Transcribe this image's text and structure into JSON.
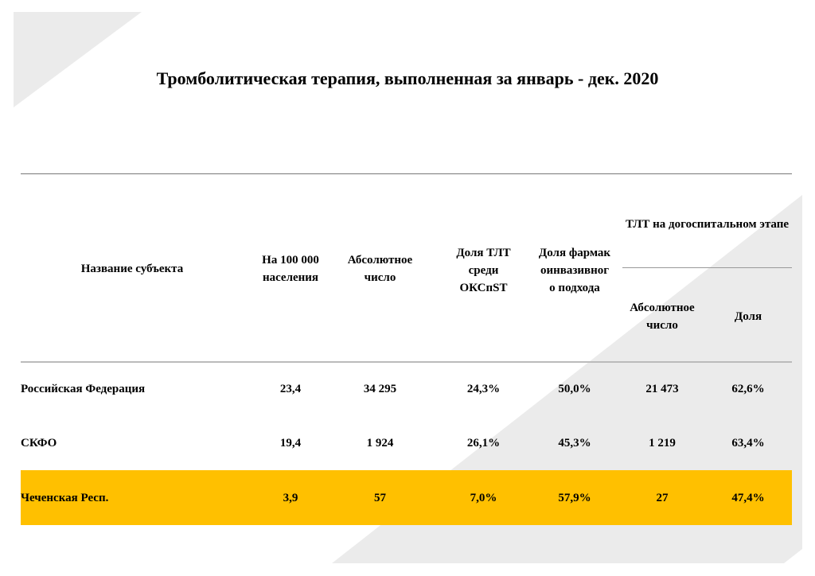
{
  "title": "Тромболитическая терапия, выполненная за январь - дек. 2020",
  "colors": {
    "highlight": "#FFC000",
    "decor": "#EBEBEB",
    "rule": "#777777"
  },
  "table": {
    "headers": {
      "name": "Название субъекта",
      "per100k": "На 100 000 населения",
      "absolute": "Абсолютное число",
      "share_oks": "Доля ТЛТ среди ОКСпST",
      "share_pharma": "Доля фармакоинвазивного подхода",
      "prehospital": "ТЛТ на догоспитальном этапе",
      "prehospital_abs": "Абсолютное число",
      "prehospital_share": "Доля"
    },
    "rows": [
      {
        "name": "Российская Федерация",
        "per100k": "23,4",
        "absolute": "34 295",
        "share_oks": "24,3%",
        "share_pharma": "50,0%",
        "prehospital_abs": "21 473",
        "prehospital_share": "62,6%",
        "highlighted": false
      },
      {
        "name": "СКФО",
        "per100k": "19,4",
        "absolute": "1 924",
        "share_oks": "26,1%",
        "share_pharma": "45,3%",
        "prehospital_abs": "1 219",
        "prehospital_share": "63,4%",
        "highlighted": false
      },
      {
        "name": "Чеченская Респ.",
        "per100k": "3,9",
        "absolute": "57",
        "share_oks": "7,0%",
        "share_pharma": "57,9%",
        "prehospital_abs": "27",
        "prehospital_share": "47,4%",
        "highlighted": true
      }
    ]
  }
}
